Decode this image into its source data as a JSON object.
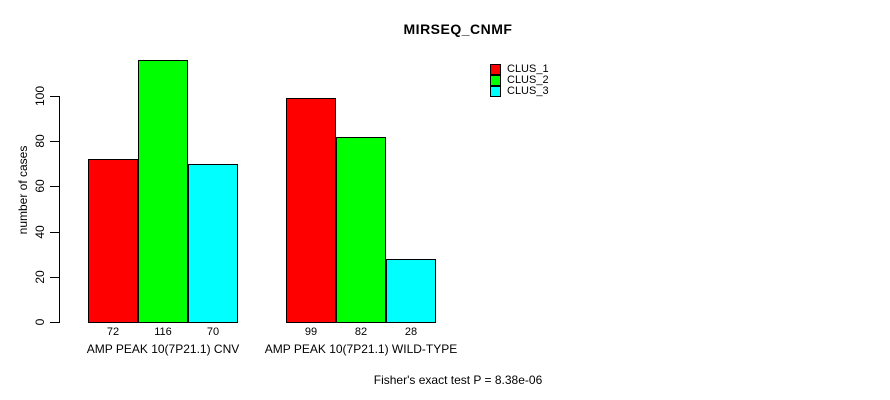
{
  "chart_data": {
    "type": "bar",
    "title": "MIRSEQ_CNMF",
    "ylabel": "number of cases",
    "xlabel": "",
    "categories": [
      "AMP PEAK 10(7P21.1) CNV",
      "AMP PEAK 10(7P21.1) WILD-TYPE"
    ],
    "series": [
      {
        "name": "CLUS_1",
        "color": "#ff0000",
        "values": [
          72,
          99
        ]
      },
      {
        "name": "CLUS_2",
        "color": "#00ff00",
        "values": [
          116,
          82
        ]
      },
      {
        "name": "CLUS_3",
        "color": "#00ffff",
        "values": [
          70,
          28
        ]
      }
    ],
    "bar_value_labels": [
      [
        72,
        116,
        70
      ],
      [
        99,
        82,
        28
      ]
    ],
    "yticks": [
      0,
      20,
      40,
      60,
      80,
      100
    ],
    "ylim": [
      0,
      100
    ],
    "grid": false,
    "legend_position": "top-right",
    "legend_entries": [
      "CLUS_1",
      "CLUS_2",
      "CLUS_3"
    ],
    "note": "Fisher's exact test P = 8.38e-06",
    "bar_border_color": "#000000",
    "axis_color": "#000000",
    "background": "#ffffff"
  }
}
